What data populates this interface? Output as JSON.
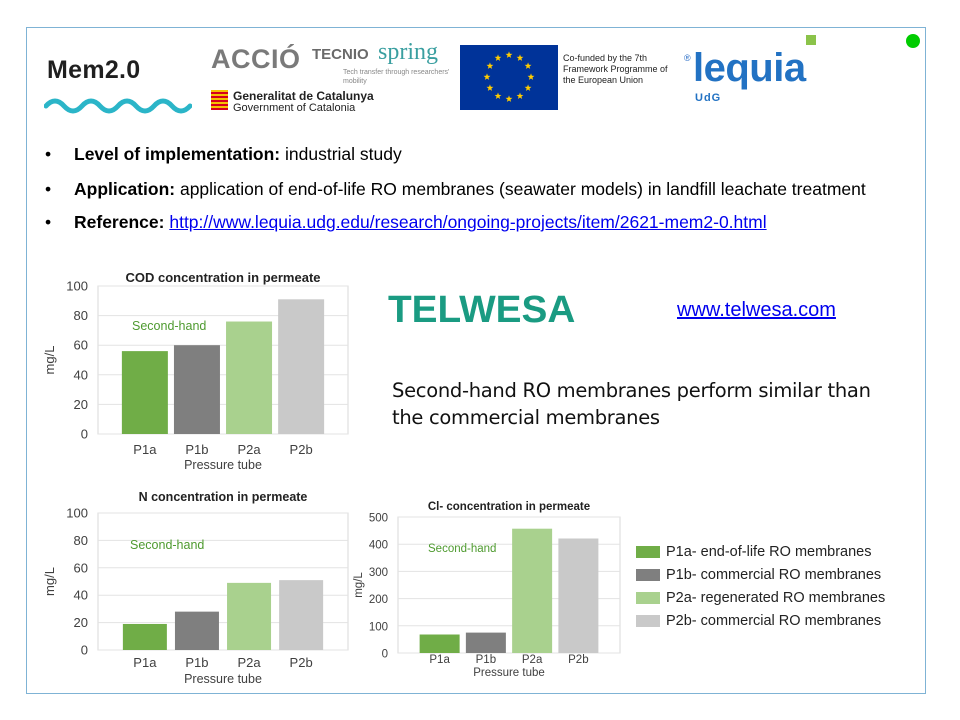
{
  "header": {
    "mem_title": "Mem2.0",
    "accio": "ACCIÓ",
    "tecnio": "TECNIO",
    "spring": "spring",
    "tecnio_sub": "Tech transfer through researchers' mobility",
    "gencat_line1": "Generalitat de Catalunya",
    "gencat_line2": "Government of Catalonia",
    "eu_text": "Co-funded by the 7th Framework Programme of the European Union",
    "lequia_reg": "®",
    "lequia": "lequia",
    "lequia_udg": "UdG"
  },
  "bullets": {
    "impl_label": "Level of implementation:",
    "impl_value": " industrial study",
    "app_label": "Application:",
    "app_value": " application of end-of-life RO membranes  (seawater models) in landfill leachate treatment",
    "ref_label": "Reference:",
    "ref_link": "http://www.lequia.udg.edu/research/ongoing-projects/item/2621-mem2-0.html"
  },
  "telwesa": {
    "logo": "TELWESA",
    "link": "www.telwesa.com",
    "conclusion": "Second-hand RO membranes perform similar than the commercial membranes"
  },
  "legend": [
    {
      "label": "P1a- end-of-life RO membranes",
      "color": "#70ad47"
    },
    {
      "label": "P1b- commercial RO membranes",
      "color": "#7f7f7f"
    },
    {
      "label": "P2a- regenerated RO membranes",
      "color": "#a9d18e"
    },
    {
      "label": "P2b- commercial RO membranes",
      "color": "#c9c9c9"
    }
  ],
  "chart_data": [
    {
      "type": "bar",
      "title": "COD concentration in permeate",
      "xlabel": "Pressure tube",
      "ylabel": "mg/L",
      "annotation": "Second-hand",
      "categories": [
        "P1a",
        "P1b",
        "P2a",
        "P2b"
      ],
      "values": [
        56,
        60,
        76,
        91
      ],
      "colors": [
        "#70ad47",
        "#7f7f7f",
        "#a9d18e",
        "#c9c9c9"
      ],
      "ylim": [
        0,
        100
      ],
      "yticks": [
        0,
        20,
        40,
        60,
        80,
        100
      ],
      "grid": true
    },
    {
      "type": "bar",
      "title": "N concentration in permeate",
      "xlabel": "Pressure tube",
      "ylabel": "mg/L",
      "annotation": "Second-hand",
      "categories": [
        "P1a",
        "P1b",
        "P2a",
        "P2b"
      ],
      "values": [
        19,
        28,
        49,
        51
      ],
      "colors": [
        "#70ad47",
        "#7f7f7f",
        "#a9d18e",
        "#c9c9c9"
      ],
      "ylim": [
        0,
        100
      ],
      "yticks": [
        0,
        20,
        40,
        60,
        80,
        100
      ],
      "grid": true
    },
    {
      "type": "bar",
      "title": "Cl- concentration in permeate",
      "xlabel": "Pressure tube",
      "ylabel": "mg/L",
      "annotation": "Second-hand",
      "categories": [
        "P1a",
        "P1b",
        "P2a",
        "P2b"
      ],
      "values": [
        68,
        75,
        457,
        421
      ],
      "colors": [
        "#70ad47",
        "#7f7f7f",
        "#a9d18e",
        "#c9c9c9"
      ],
      "ylim": [
        0,
        500
      ],
      "yticks": [
        0,
        100,
        200,
        300,
        400,
        500
      ],
      "grid": true
    }
  ]
}
